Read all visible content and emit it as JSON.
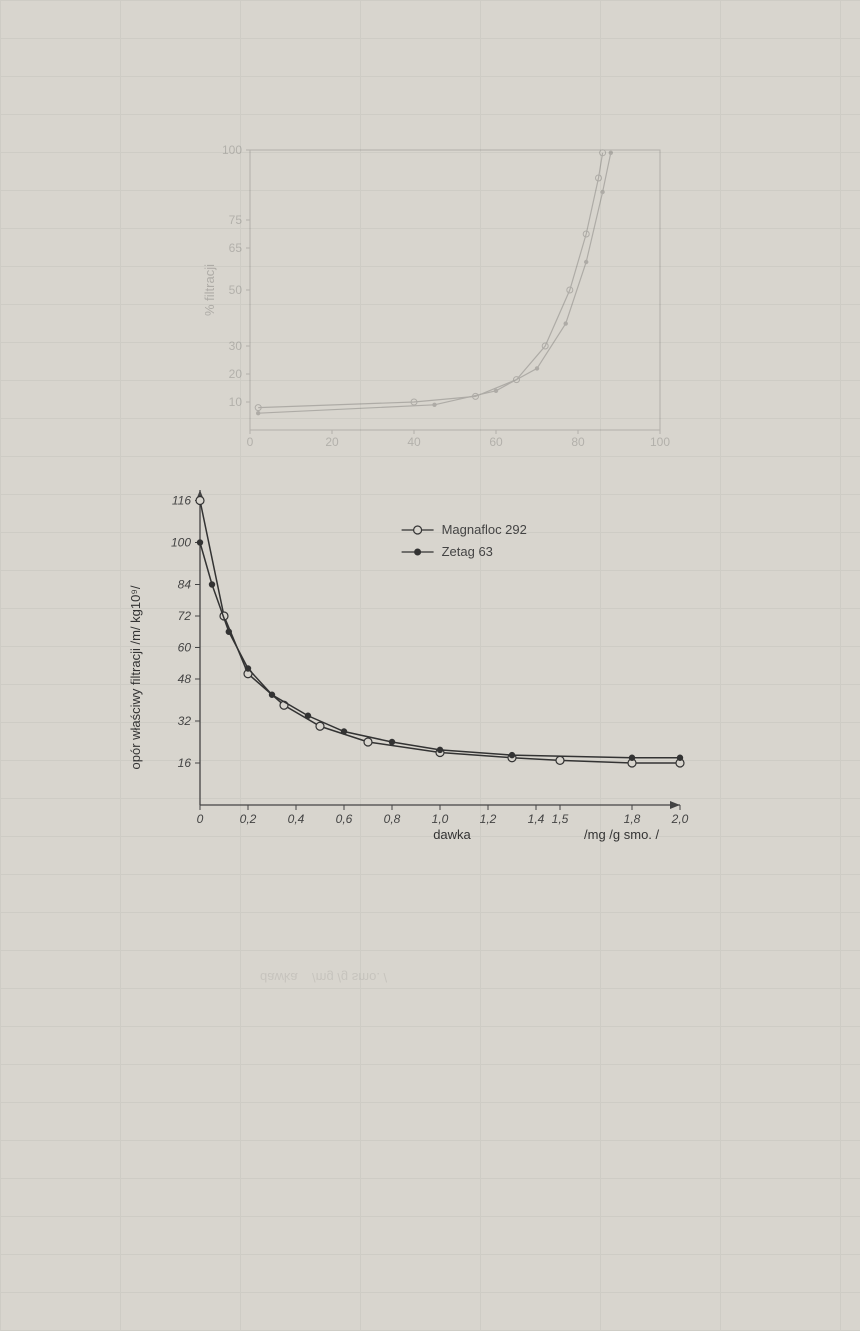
{
  "chart1": {
    "type": "line",
    "ylabel": "% filtracji",
    "x_ticks": [
      0,
      20,
      40,
      60,
      80,
      100
    ],
    "y_ticks": [
      10,
      20,
      30,
      50,
      65,
      75,
      100
    ],
    "xlim": [
      0,
      100
    ],
    "ylim": [
      0,
      100
    ],
    "background_color": "#d8d5ce",
    "axis_color": "#444",
    "grid_color": "#aaa",
    "series": [
      {
        "name": "series1",
        "color": "#333",
        "marker": "circle",
        "points": [
          {
            "x": 2,
            "y": 8
          },
          {
            "x": 40,
            "y": 10
          },
          {
            "x": 55,
            "y": 12
          },
          {
            "x": 65,
            "y": 18
          },
          {
            "x": 72,
            "y": 30
          },
          {
            "x": 78,
            "y": 50
          },
          {
            "x": 82,
            "y": 70
          },
          {
            "x": 85,
            "y": 90
          },
          {
            "x": 86,
            "y": 99
          }
        ]
      },
      {
        "name": "series2",
        "color": "#333",
        "marker": "dot",
        "points": [
          {
            "x": 2,
            "y": 6
          },
          {
            "x": 45,
            "y": 9
          },
          {
            "x": 60,
            "y": 14
          },
          {
            "x": 70,
            "y": 22
          },
          {
            "x": 77,
            "y": 38
          },
          {
            "x": 82,
            "y": 60
          },
          {
            "x": 86,
            "y": 85
          },
          {
            "x": 88,
            "y": 99
          }
        ]
      }
    ]
  },
  "chart2": {
    "type": "line",
    "ylabel": "opór właściwy filtracji  /m/ kg10⁹/",
    "xlabel_main": "dawka",
    "xlabel_unit": "/mg /g smo. /",
    "x_ticks": [
      "0",
      "0,2",
      "0,4",
      "0,6",
      "0,8",
      "1,0",
      "1,2",
      "1,4",
      "1,5",
      "1,8",
      "2,0"
    ],
    "x_tick_values": [
      0,
      0.2,
      0.4,
      0.6,
      0.8,
      1.0,
      1.2,
      1.4,
      1.5,
      1.8,
      2.0
    ],
    "y_ticks": [
      16,
      32,
      48,
      60,
      72,
      84,
      100,
      116
    ],
    "xlim": [
      0,
      2.0
    ],
    "ylim": [
      0,
      120
    ],
    "background_color": "#d8d5ce",
    "axis_color": "#444",
    "legend": {
      "items": [
        {
          "label": "Magnafloc  292",
          "marker": "open-circle",
          "color": "#333"
        },
        {
          "label": "Zetag  63",
          "marker": "filled-circle",
          "color": "#333"
        }
      ]
    },
    "series": [
      {
        "name": "Magnafloc 292",
        "color": "#333",
        "marker": "open-circle",
        "line_width": 1.5,
        "points": [
          {
            "x": 0.0,
            "y": 116
          },
          {
            "x": 0.1,
            "y": 72
          },
          {
            "x": 0.2,
            "y": 50
          },
          {
            "x": 0.35,
            "y": 38
          },
          {
            "x": 0.5,
            "y": 30
          },
          {
            "x": 0.7,
            "y": 24
          },
          {
            "x": 1.0,
            "y": 20
          },
          {
            "x": 1.3,
            "y": 18
          },
          {
            "x": 1.5,
            "y": 17
          },
          {
            "x": 1.8,
            "y": 16
          },
          {
            "x": 2.0,
            "y": 16
          }
        ]
      },
      {
        "name": "Zetag 63",
        "color": "#333",
        "marker": "filled-circle",
        "line_width": 1.5,
        "points": [
          {
            "x": 0.0,
            "y": 100
          },
          {
            "x": 0.05,
            "y": 84
          },
          {
            "x": 0.12,
            "y": 66
          },
          {
            "x": 0.2,
            "y": 52
          },
          {
            "x": 0.3,
            "y": 42
          },
          {
            "x": 0.45,
            "y": 34
          },
          {
            "x": 0.6,
            "y": 28
          },
          {
            "x": 0.8,
            "y": 24
          },
          {
            "x": 1.0,
            "y": 21
          },
          {
            "x": 1.3,
            "y": 19
          },
          {
            "x": 1.8,
            "y": 18
          },
          {
            "x": 2.0,
            "y": 18
          }
        ]
      }
    ]
  },
  "ghost_chart2_mirror": {
    "xlabel_main": "dawka",
    "xlabel_unit": "/mg /g smo. /"
  }
}
